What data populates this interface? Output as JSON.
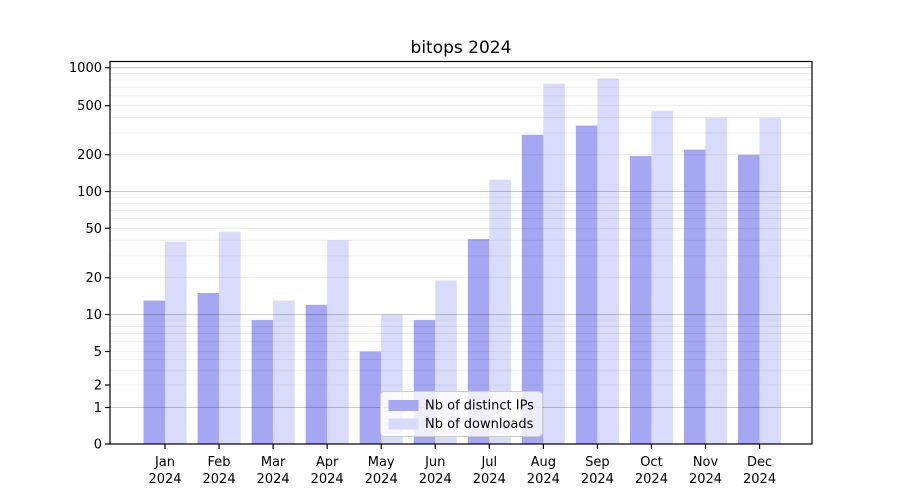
{
  "figure": {
    "title": "bitops 2024",
    "background": "#ffffff"
  },
  "chart_data": {
    "type": "bar",
    "title": "bitops 2024",
    "categories": [
      "Jan 2024",
      "Feb 2024",
      "Mar 2024",
      "Apr 2024",
      "May 2024",
      "Jun 2024",
      "Jul 2024",
      "Aug 2024",
      "Sep 2024",
      "Oct 2024",
      "Nov 2024",
      "Dec 2024"
    ],
    "months": [
      "Jan",
      "Feb",
      "Mar",
      "Apr",
      "May",
      "Jun",
      "Jul",
      "Aug",
      "Sep",
      "Oct",
      "Nov",
      "Dec"
    ],
    "year": "2024",
    "series": [
      {
        "name": "Nb of distinct IPs",
        "color": "#a5a7f2",
        "values": [
          13,
          15,
          9,
          12,
          5,
          9,
          41,
          290,
          345,
          195,
          220,
          200
        ]
      },
      {
        "name": "Nb of downloads",
        "color": "#d9dbfa",
        "values": [
          39,
          47,
          13,
          40,
          10,
          19,
          125,
          750,
          820,
          455,
          400,
          400
        ]
      }
    ],
    "yscale": "symlog",
    "ylim": [
      0,
      1120
    ],
    "yticks": {
      "values": [
        0,
        1,
        2,
        5,
        10,
        20,
        50,
        100,
        200,
        500,
        1000
      ],
      "labels": [
        "0",
        "1",
        "2",
        "5",
        "10",
        "20",
        "50",
        "100",
        "200",
        "500",
        "1000"
      ]
    },
    "minor_gridline_values": [
      2,
      3,
      4,
      5,
      6,
      7,
      8,
      9,
      20,
      30,
      40,
      50,
      60,
      70,
      80,
      90,
      200,
      300,
      400,
      500,
      600,
      700,
      800,
      900
    ],
    "major_gridline_values": [
      1,
      10,
      100,
      1000
    ],
    "grid": {
      "major": true,
      "minor": true,
      "drawn_above_bars": true
    },
    "legend": {
      "entries": [
        "Nb of distinct IPs",
        "Nb of downloads"
      ],
      "position": "lower center"
    },
    "colors": {
      "axis": "#000000",
      "text": "#000000",
      "major_grid": "rgba(0,0,0,0.28)",
      "minor_grid": "rgba(0,0,0,0.08)",
      "legend_border": "#cccccc",
      "legend_background": "rgba(255,255,255,0.8)"
    }
  }
}
